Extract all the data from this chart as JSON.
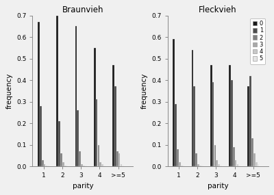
{
  "braunvieh": {
    "title": "Braunvieh",
    "parities": [
      "1",
      "2",
      "3",
      "4",
      ">=5"
    ],
    "series": {
      "0": [
        0.67,
        0.7,
        0.65,
        0.55,
        0.47
      ],
      "1": [
        0.28,
        0.21,
        0.26,
        0.31,
        0.37
      ],
      "2": [
        0.03,
        0.06,
        0.07,
        0.1,
        0.07
      ],
      "3": [
        0.01,
        0.02,
        0.01,
        0.02,
        0.06
      ],
      "4": [
        0.005,
        0.005,
        0.005,
        0.01,
        0.01
      ],
      "5": [
        0.002,
        0.002,
        0.002,
        0.005,
        0.005
      ]
    }
  },
  "fleckvieh": {
    "title": "Fleckvieh",
    "parities": [
      "1",
      "2",
      "3",
      "4",
      ">=5"
    ],
    "series": {
      "0": [
        0.59,
        0.54,
        0.47,
        0.47,
        0.37
      ],
      "1": [
        0.29,
        0.37,
        0.39,
        0.4,
        0.42
      ],
      "2": [
        0.08,
        0.06,
        0.1,
        0.09,
        0.13
      ],
      "3": [
        0.02,
        0.01,
        0.03,
        0.03,
        0.06
      ],
      "4": [
        0.005,
        0.005,
        0.01,
        0.01,
        0.02
      ],
      "5": [
        0.002,
        0.002,
        0.005,
        0.005,
        0.01
      ]
    }
  },
  "colors": {
    "0": "#1a1a1a",
    "1": "#4d4d4d",
    "2": "#808080",
    "3": "#a8a8a8",
    "4": "#c8c8c8",
    "5": "#e5e5e5"
  },
  "legend_labels": [
    "0",
    "1",
    "2",
    "3",
    "4",
    "5"
  ],
  "ylabel": "frequency",
  "xlabel": "parity",
  "ylim": [
    0,
    0.7
  ],
  "yticks": [
    0.0,
    0.1,
    0.2,
    0.3,
    0.4,
    0.5,
    0.6,
    0.7
  ],
  "background_color": "#f0f0f0"
}
